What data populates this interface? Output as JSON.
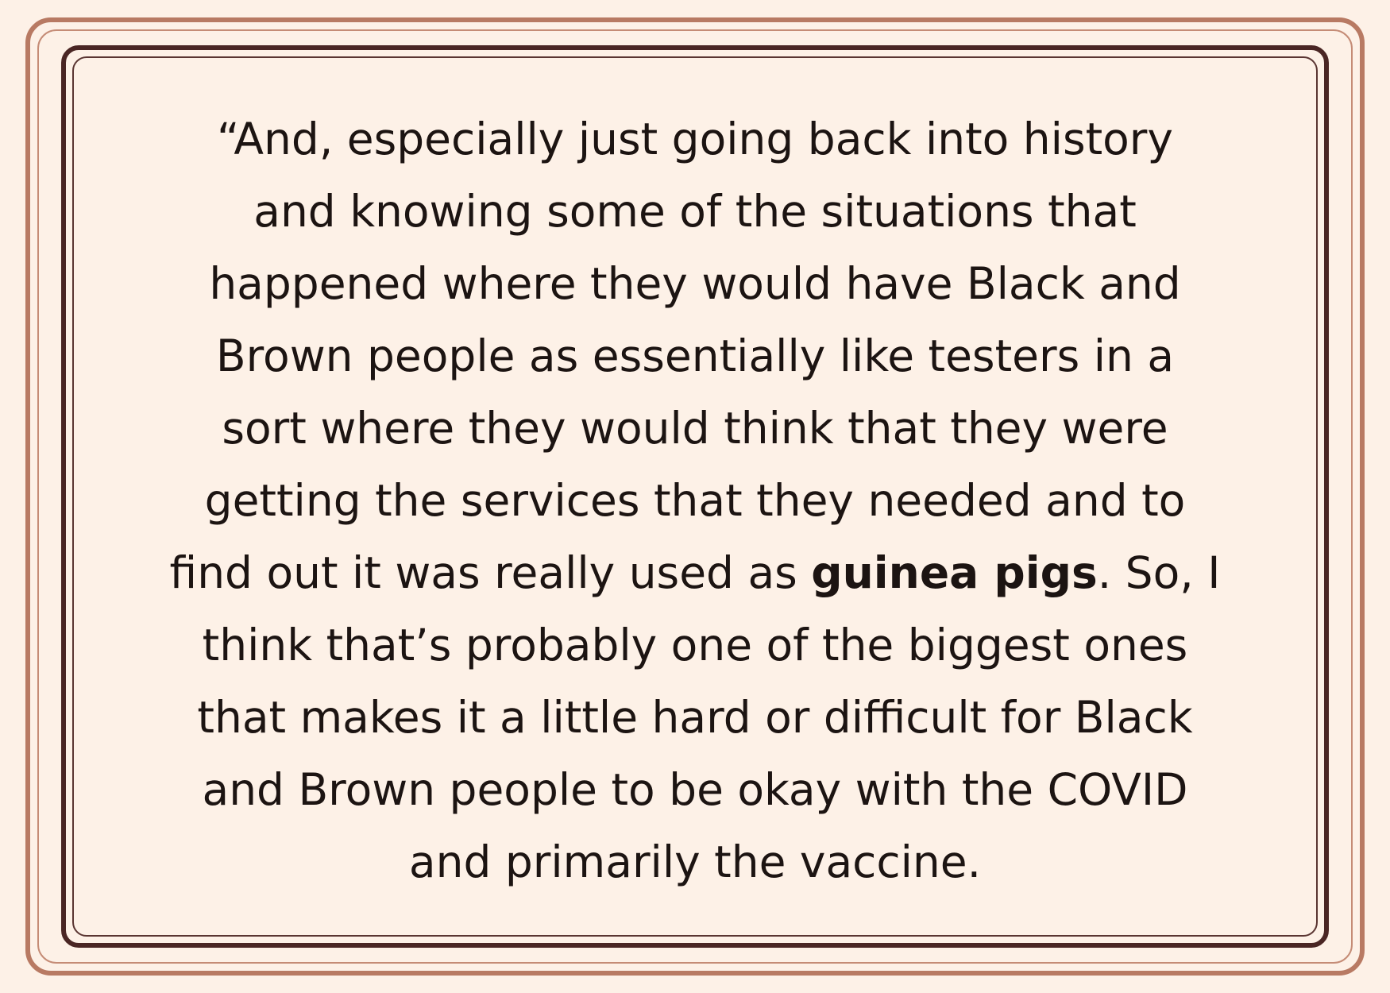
{
  "quote": {
    "lines": [
      "“And, especially just going back into history",
      "and knowing some of the situations that",
      "happened where they would have Black and",
      "Brown people as essentially like testers in a",
      "sort where they would think that they were",
      "getting the services that they needed and to",
      "find out it was really used as ",
      "think that’s probably one of the biggest ones",
      "that makes it a little hard or difficult for Black",
      "and Brown people to be okay with the COVID",
      "and primarily the vaccine."
    ],
    "emphasis": "guinea pigs",
    "emphasis_after": ". So, I"
  },
  "colors": {
    "background": "#fdf1e7",
    "outer_border": "#b87a63",
    "inner_border": "#4a2624",
    "text": "#1c1412"
  }
}
